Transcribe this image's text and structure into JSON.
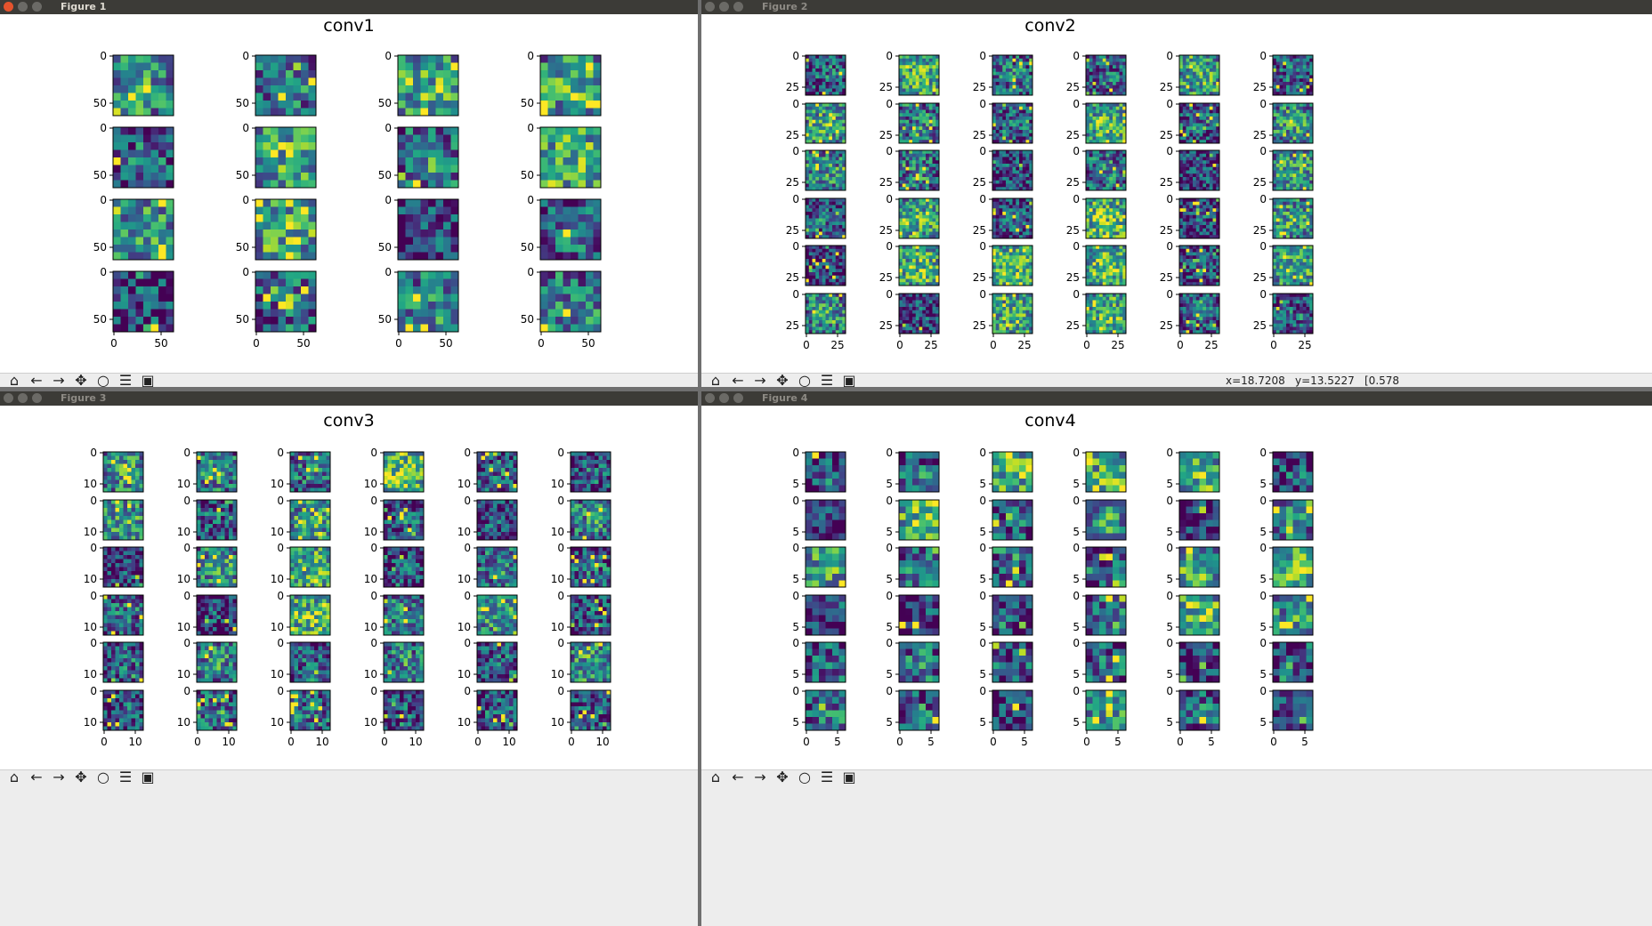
{
  "windows": [
    {
      "id": "fig1",
      "title": "Figure 1",
      "suptitle": "conv1",
      "active": true,
      "cols": 4,
      "rows": 4,
      "grid": 8,
      "yticks": [
        "0",
        "50"
      ],
      "xticks": [
        "0",
        "50"
      ],
      "status": null
    },
    {
      "id": "fig2",
      "title": "Figure 2",
      "suptitle": "conv2",
      "active": false,
      "cols": 6,
      "rows": 6,
      "grid": 12,
      "yticks": [
        "0",
        "25"
      ],
      "xticks": [
        "0",
        "25"
      ],
      "status": {
        "x": "x=18.7208",
        "y": "y=13.5227",
        "value": "[0.578"
      }
    },
    {
      "id": "fig3",
      "title": "Figure 3",
      "suptitle": "conv3",
      "active": false,
      "cols": 6,
      "rows": 6,
      "grid": 10,
      "yticks": [
        "0",
        "10"
      ],
      "xticks": [
        "0",
        "10"
      ],
      "status": null
    },
    {
      "id": "fig4",
      "title": "Figure 4",
      "suptitle": "conv4",
      "active": false,
      "cols": 6,
      "rows": 6,
      "grid": 6,
      "yticks": [
        "0",
        "5"
      ],
      "xticks": [
        "0",
        "5"
      ],
      "status": null
    }
  ],
  "toolbar_tools": [
    {
      "name": "home",
      "icon": "home-icon",
      "glyph": "⌂"
    },
    {
      "name": "back",
      "icon": "back-arrow-icon",
      "glyph": "←"
    },
    {
      "name": "forward",
      "icon": "forward-arrow-icon",
      "glyph": "→"
    },
    {
      "name": "pan",
      "icon": "pan-icon",
      "glyph": "✥"
    },
    {
      "name": "zoom",
      "icon": "zoom-icon",
      "glyph": "○"
    },
    {
      "name": "configure",
      "icon": "configure-subplots-icon",
      "glyph": "☰"
    },
    {
      "name": "save",
      "icon": "save-icon",
      "glyph": "▣"
    }
  ],
  "colormap": "viridis",
  "colors": {
    "titlebar": "#3c3b37",
    "close_button": "#e4532d",
    "toolbar": "#ededed"
  }
}
